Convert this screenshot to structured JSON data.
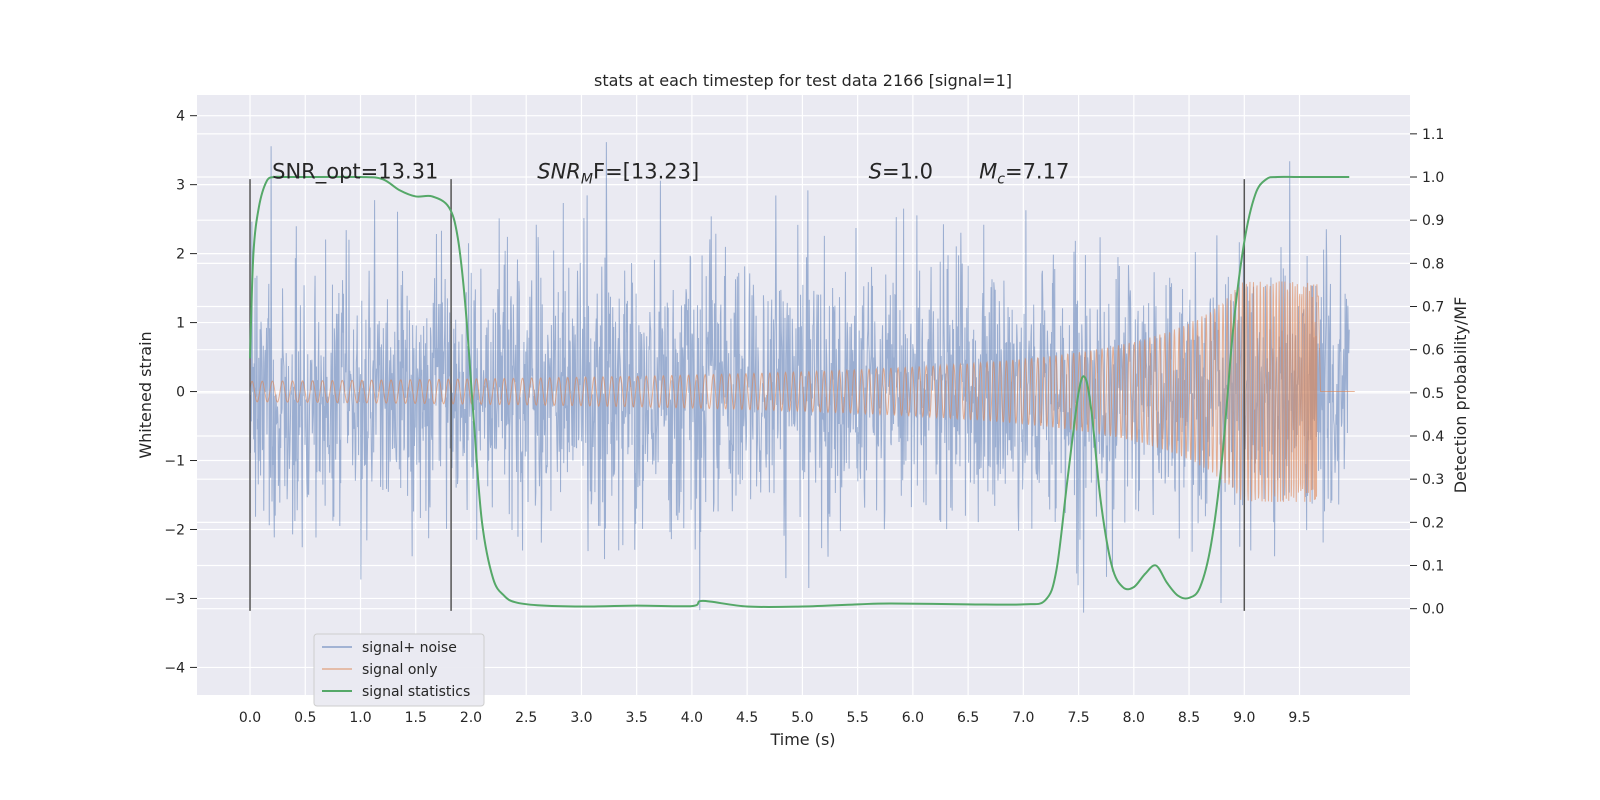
{
  "chart_data": {
    "type": "line",
    "title": "stats at each timestep for test data 2166 [signal=1]",
    "xlabel": "Time (s)",
    "ylabel_left": "Whitened strain",
    "ylabel_right": "Detection probability/MF",
    "xlim": [
      -0.48,
      10.5
    ],
    "ylim_left": [
      -4.4,
      4.3
    ],
    "ylim_right": [
      -0.2,
      1.19
    ],
    "x_ticks": [
      0.0,
      0.5,
      1.0,
      1.5,
      2.0,
      2.5,
      3.0,
      3.5,
      4.0,
      4.5,
      5.0,
      5.5,
      6.0,
      6.5,
      7.0,
      7.5,
      8.0,
      8.5,
      9.0,
      9.5
    ],
    "x_tick_labels": [
      "0.0",
      "0.5",
      "1.0",
      "1.5",
      "2.0",
      "2.5",
      "3.0",
      "3.5",
      "4.0",
      "4.5",
      "5.0",
      "5.5",
      "6.0",
      "6.5",
      "7.0",
      "7.5",
      "8.0",
      "8.5",
      "9.0",
      "9.5"
    ],
    "y_left_ticks": [
      4,
      3,
      2,
      1,
      0,
      -1,
      -2,
      -3,
      -4
    ],
    "y_left_tick_labels": [
      "4",
      "3",
      "2",
      "1",
      "0",
      "−1",
      "−2",
      "−3",
      "−4"
    ],
    "y_right_ticks": [
      1.1,
      1.0,
      0.9,
      0.8,
      0.7,
      0.6,
      0.5,
      0.4,
      0.3,
      0.2,
      0.1,
      0.0
    ],
    "y_right_tick_labels": [
      "1.1",
      "1.0",
      "0.9",
      "0.8",
      "0.7",
      "0.6",
      "0.5",
      "0.4",
      "0.3",
      "0.2",
      "0.1",
      "0.0"
    ],
    "grid": true,
    "legend_position": "lower-left",
    "series": [
      {
        "name": "signal+ noise",
        "color": "#4c72b0",
        "axis": "left",
        "x_range": [
          0.0,
          9.95
        ],
        "approx_envelope": [
          -2.8,
          3.9
        ]
      },
      {
        "name": "signal only",
        "color": "#dd8452",
        "axis": "left",
        "x_range": [
          0.0,
          9.67
        ],
        "chirp_peak_amplitude": 1.6
      },
      {
        "name": "signal statistics",
        "color": "#55a868",
        "axis": "right",
        "x": [
          0.0,
          0.03,
          0.08,
          0.15,
          0.22,
          0.3,
          0.5,
          1.0,
          1.2,
          1.35,
          1.5,
          1.65,
          1.8,
          1.88,
          1.95,
          2.03,
          2.1,
          2.2,
          2.3,
          2.4,
          2.6,
          3.0,
          3.5,
          4.0,
          4.1,
          4.5,
          5.0,
          5.5,
          5.8,
          6.5,
          7.0,
          7.2,
          7.3,
          7.4,
          7.5,
          7.56,
          7.62,
          7.7,
          7.8,
          7.9,
          8.0,
          8.1,
          8.2,
          8.3,
          8.4,
          8.5,
          8.6,
          8.7,
          8.8,
          8.9,
          9.0,
          9.1,
          9.2,
          9.3,
          9.5,
          9.95
        ],
        "values": [
          0.58,
          0.82,
          0.93,
          0.99,
          1.0,
          1.0,
          1.0,
          1.0,
          0.995,
          0.97,
          0.955,
          0.955,
          0.93,
          0.86,
          0.7,
          0.42,
          0.2,
          0.07,
          0.03,
          0.015,
          0.008,
          0.005,
          0.007,
          0.006,
          0.018,
          0.005,
          0.005,
          0.01,
          0.012,
          0.01,
          0.01,
          0.02,
          0.09,
          0.3,
          0.5,
          0.535,
          0.45,
          0.25,
          0.1,
          0.05,
          0.05,
          0.08,
          0.1,
          0.06,
          0.03,
          0.025,
          0.05,
          0.15,
          0.35,
          0.65,
          0.85,
          0.96,
          0.995,
          1.0,
          1.0,
          1.0
        ]
      }
    ],
    "vertical_lines": [
      0.0,
      1.82,
      9.0
    ],
    "annotations": [
      {
        "x": 0.2,
        "text": "SNR_opt=13.31"
      },
      {
        "x": 2.6,
        "text": "SNR",
        "math_sub": "M",
        "tail": "F=[13.23]"
      },
      {
        "x": 5.6,
        "text": "S",
        "tail": "=1.0"
      },
      {
        "x": 6.6,
        "text": "M",
        "math_sub": "c",
        "tail": "=7.17"
      }
    ]
  }
}
